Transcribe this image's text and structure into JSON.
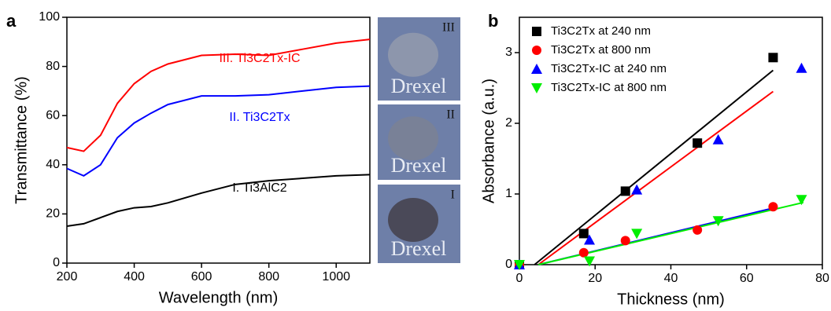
{
  "chart_data": [
    {
      "type": "line",
      "panel_label": "a",
      "x_label": "Wavelength (nm)",
      "y_label": "Transmittance (%)",
      "x": [
        200,
        250,
        300,
        350,
        400,
        450,
        500,
        600,
        700,
        800,
        900,
        1000,
        1100
      ],
      "series": [
        {
          "name": "III. Ti3C2Tx-IC",
          "color": "#ff0000",
          "values": [
            47,
            45.5,
            52,
            65,
            73,
            78,
            81,
            84.5,
            85,
            84.5,
            87,
            89.5,
            91
          ]
        },
        {
          "name": "II. Ti3C2Tx",
          "color": "#0000ff",
          "values": [
            38.5,
            35.5,
            40,
            51,
            57,
            61,
            64.5,
            68,
            68,
            68.5,
            70,
            71.5,
            72
          ]
        },
        {
          "name": "I. Ti3AlC2",
          "color": "#000000",
          "values": [
            15,
            16,
            18.5,
            21,
            22.5,
            23,
            24.5,
            28.5,
            32,
            33.5,
            34.5,
            35.5,
            36
          ]
        }
      ],
      "xlim": [
        200,
        1100
      ],
      "xticks": [
        200,
        400,
        600,
        800,
        1000
      ],
      "ylim": [
        0,
        100
      ],
      "yticks": [
        0,
        20,
        40,
        60,
        80,
        100
      ]
    },
    {
      "type": "scatter",
      "panel_label": "b",
      "x_label": "Thickness (nm)",
      "y_label": "Absorbance (a.u.)",
      "series": [
        {
          "name": "Ti3C2Tx at 240 nm",
          "color": "#000000",
          "marker": "square",
          "x": [
            0,
            17,
            28,
            47,
            67
          ],
          "values": [
            0,
            0.44,
            1.04,
            1.72,
            2.93
          ]
        },
        {
          "name": "Ti3C2Tx at 800 nm",
          "color": "#ff0000",
          "marker": "circle",
          "x": [
            0,
            17,
            28,
            47,
            67
          ],
          "values": [
            0,
            0.17,
            0.34,
            0.49,
            0.82
          ]
        },
        {
          "name": "Ti3C2Tx-IC at 240 nm",
          "color": "#0000ff",
          "marker": "triangle-up",
          "x": [
            0,
            18.5,
            31,
            52.5,
            74.5
          ],
          "values": [
            0,
            0.35,
            1.06,
            1.77,
            2.78
          ]
        },
        {
          "name": "Ti3C2Tx-IC at 800 nm",
          "color": "#00ee00",
          "marker": "triangle-down",
          "x": [
            0,
            18.5,
            31,
            52.5,
            74.5
          ],
          "values": [
            0,
            0.05,
            0.44,
            0.62,
            0.92
          ]
        }
      ],
      "fit_lines": [
        {
          "color": "#000000",
          "x": [
            4,
            67
          ],
          "values": [
            0,
            2.75
          ]
        },
        {
          "color": "#ff0000",
          "x": [
            5,
            67
          ],
          "values": [
            0,
            2.45
          ]
        },
        {
          "color": "#0000ff",
          "x": [
            5,
            67
          ],
          "values": [
            0,
            0.8
          ]
        },
        {
          "color": "#00ee00",
          "x": [
            5,
            75
          ],
          "values": [
            0,
            0.88
          ]
        }
      ],
      "xlim": [
        0,
        80
      ],
      "xticks": [
        0,
        20,
        40,
        60,
        80
      ],
      "ylim": [
        0,
        3.5
      ],
      "yticks": [
        0,
        1,
        2,
        3
      ],
      "legend": "top-left"
    }
  ],
  "photos": [
    {
      "label": "III",
      "caption": "Drexel"
    },
    {
      "label": "II",
      "caption": "Drexel"
    },
    {
      "label": "I",
      "caption": "Drexel"
    }
  ]
}
